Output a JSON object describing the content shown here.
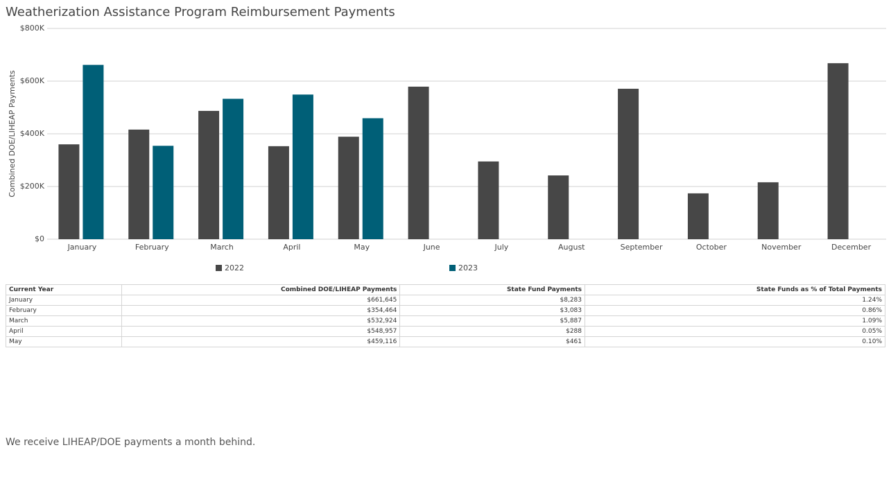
{
  "chart_data": {
    "type": "bar",
    "title": "Weatherization Assistance Program Reimbursement Payments",
    "y_label": "Combined DOE/LIHEAP Payments",
    "categories": [
      "January",
      "February",
      "March",
      "April",
      "May",
      "June",
      "July",
      "August",
      "September",
      "October",
      "November",
      "December"
    ],
    "series": [
      {
        "name": "2022",
        "color": "#474747",
        "values": [
          360000,
          416000,
          487000,
          353000,
          389000,
          579000,
          295000,
          242000,
          571000,
          174000,
          216000,
          668000
        ]
      },
      {
        "name": "2023",
        "color": "#005f77",
        "values": [
          661645,
          354464,
          532924,
          548957,
          459116,
          null,
          null,
          null,
          null,
          null,
          null,
          null
        ]
      }
    ],
    "ylim": [
      0,
      800000
    ],
    "yticks": [
      {
        "value": 0,
        "label": "$0"
      },
      {
        "value": 200000,
        "label": "$200K"
      },
      {
        "value": 400000,
        "label": "$400K"
      },
      {
        "value": 600000,
        "label": "$600K"
      },
      {
        "value": 800000,
        "label": "$800K"
      }
    ],
    "grid": true,
    "legend": "bottom"
  },
  "table": {
    "columns": [
      "Current Year",
      "Combined DOE/LIHEAP Payments",
      "State Fund Payments",
      "State Funds as % of Total Payments"
    ],
    "rows": [
      [
        "January",
        "$661,645",
        "$8,283",
        "1.24%"
      ],
      [
        "February",
        "$354,464",
        "$3,083",
        "0.86%"
      ],
      [
        "March",
        "$532,924",
        "$5,887",
        "1.09%"
      ],
      [
        "April",
        "$548,957",
        "$288",
        "0.05%"
      ],
      [
        "May",
        "$459,116",
        "$461",
        "0.10%"
      ]
    ]
  },
  "note": "We receive LIHEAP/DOE payments a month behind."
}
